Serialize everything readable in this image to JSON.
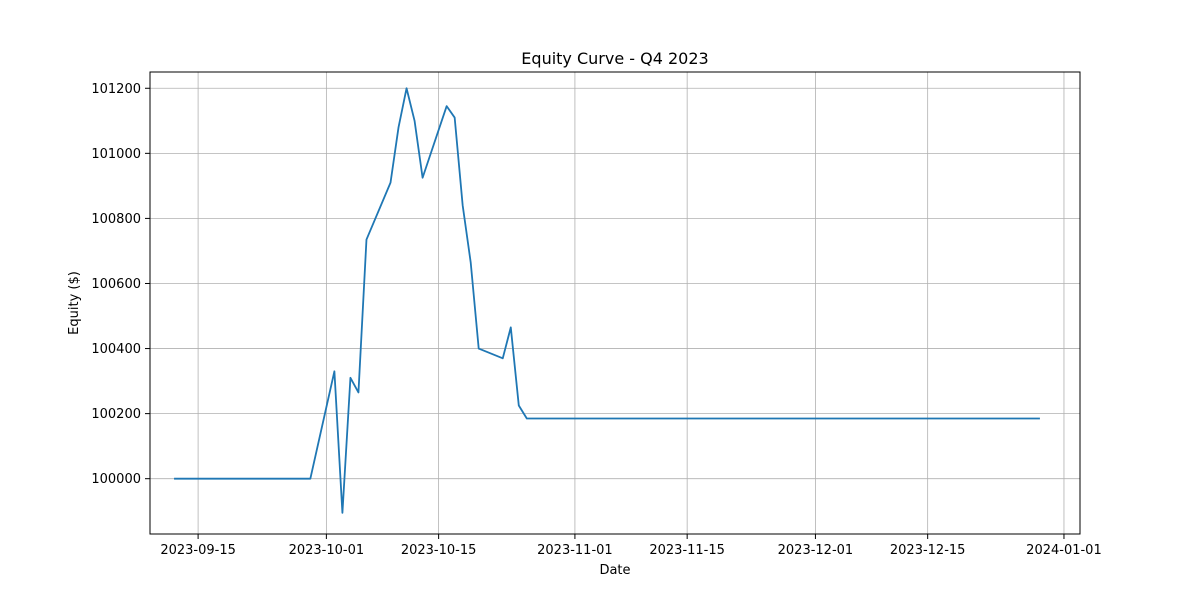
{
  "chart_data": {
    "type": "line",
    "title": "Equity Curve - Q4 2023",
    "xlabel": "Date",
    "ylabel": "Equity ($)",
    "grid": true,
    "xlim": [
      "2023-09-09",
      "2024-01-03"
    ],
    "ylim": [
      99830,
      101250
    ],
    "x_ticks": [
      "2023-09-15",
      "2023-10-01",
      "2023-10-15",
      "2023-11-01",
      "2023-11-15",
      "2023-12-01",
      "2023-12-15",
      "2024-01-01"
    ],
    "x_tick_labels": [
      "2023-09-15",
      "2023-10-01",
      "2023-10-15",
      "2023-11-01",
      "2023-11-15",
      "2023-12-01",
      "2023-12-15",
      "2024-01-01"
    ],
    "y_ticks": [
      100000,
      100200,
      100400,
      100600,
      100800,
      101000,
      101200
    ],
    "y_tick_labels": [
      "100000",
      "100200",
      "100400",
      "100600",
      "100800",
      "101000",
      "101200"
    ],
    "series": [
      {
        "color": "#1f77b4",
        "points": [
          [
            "2023-09-12",
            100000
          ],
          [
            "2023-09-29",
            100000
          ],
          [
            "2023-10-02",
            100330
          ],
          [
            "2023-10-03",
            99895
          ],
          [
            "2023-10-04",
            100310
          ],
          [
            "2023-10-05",
            100265
          ],
          [
            "2023-10-06",
            100735
          ],
          [
            "2023-10-09",
            100910
          ],
          [
            "2023-10-10",
            101080
          ],
          [
            "2023-10-11",
            101200
          ],
          [
            "2023-10-12",
            101100
          ],
          [
            "2023-10-13",
            100925
          ],
          [
            "2023-10-16",
            101145
          ],
          [
            "2023-10-17",
            101110
          ],
          [
            "2023-10-18",
            100840
          ],
          [
            "2023-10-19",
            100665
          ],
          [
            "2023-10-20",
            100400
          ],
          [
            "2023-10-23",
            100370
          ],
          [
            "2023-10-24",
            100465
          ],
          [
            "2023-10-25",
            100225
          ],
          [
            "2023-10-26",
            100185
          ],
          [
            "2023-12-29",
            100185
          ]
        ]
      }
    ]
  }
}
